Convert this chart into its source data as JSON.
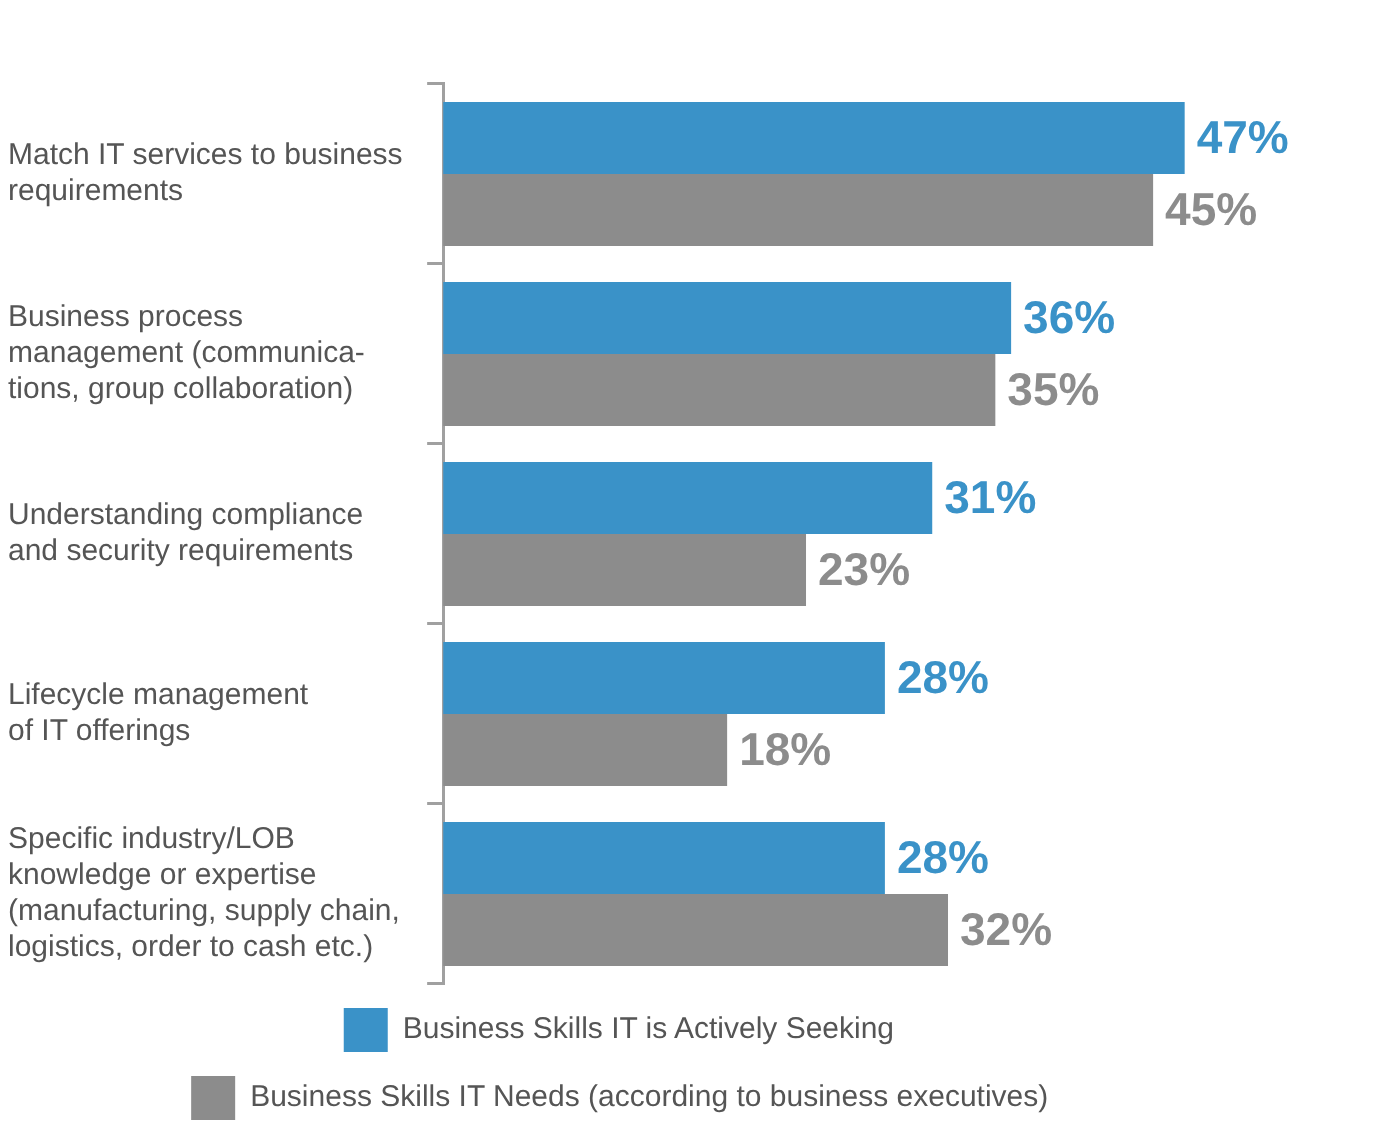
{
  "chart_data": {
    "type": "bar",
    "orientation": "horizontal",
    "categories": [
      "Match IT services to business\nrequirements",
      "Business process\nmanagement (communica-\ntions, group collaboration)",
      "Understanding compliance\nand security requirements",
      "Lifecycle management\nof IT offerings",
      "Specific industry/LOB\nknowledge or expertise\n(manufacturing, supply chain,\nlogistics, order to cash etc.)"
    ],
    "series": [
      {
        "name": "Business Skills IT is Actively Seeking",
        "color": "#3a92c8",
        "values": [
          47,
          36,
          31,
          28,
          28
        ],
        "value_labels": [
          "47%",
          "36%",
          "31%",
          "28%",
          "28%"
        ]
      },
      {
        "name": "Business Skills IT Needs (according to business executives)",
        "color": "#8c8c8c",
        "values": [
          45,
          35,
          23,
          18,
          32
        ],
        "value_labels": [
          "45%",
          "35%",
          "23%",
          "18%",
          "32%"
        ]
      }
    ],
    "tick_labels": "y",
    "grid": false,
    "legend": "bottom"
  }
}
